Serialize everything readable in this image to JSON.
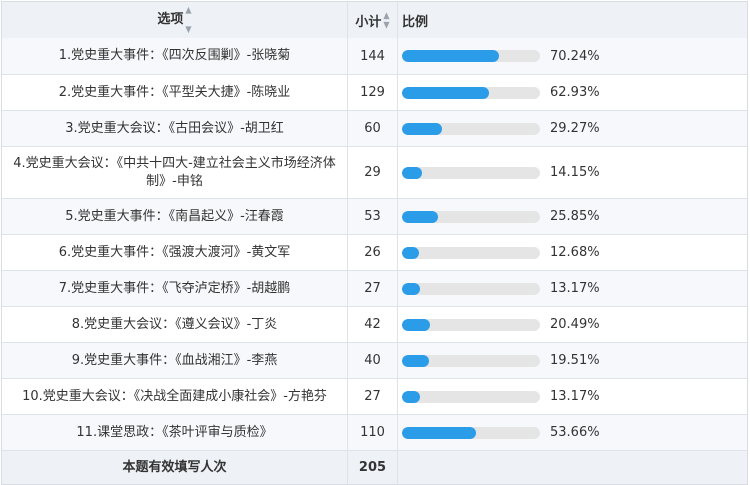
{
  "header": {
    "option": "选项",
    "count": "小计",
    "ratio": "比例",
    "sort_icon": "sort-arrows-icon"
  },
  "rows": [
    {
      "label": "1.党史重大事件：《四次反围剿》-张晓菊",
      "count": "144",
      "percent": "70.24%",
      "value": 0.7024
    },
    {
      "label": "2.党史重大事件：《平型关大捷》-陈晓业",
      "count": "129",
      "percent": "62.93%",
      "value": 0.6293
    },
    {
      "label": "3.党史重大会议：《古田会议》-胡卫红",
      "count": "60",
      "percent": "29.27%",
      "value": 0.2927
    },
    {
      "label": "4.党史重大会议：《中共十四大-建立社会主义市场经济体制》-申铭",
      "count": "29",
      "percent": "14.15%",
      "value": 0.1415
    },
    {
      "label": "5.党史重大事件：《南昌起义》-汪春霞",
      "count": "53",
      "percent": "25.85%",
      "value": 0.2585
    },
    {
      "label": "6.党史重大事件：《强渡大渡河》-黄文军",
      "count": "26",
      "percent": "12.68%",
      "value": 0.1268
    },
    {
      "label": "7.党史重大事件：《飞夺泸定桥》-胡越鹏",
      "count": "27",
      "percent": "13.17%",
      "value": 0.1317
    },
    {
      "label": "8.党史重大会议：《遵义会议》-丁炎",
      "count": "42",
      "percent": "20.49%",
      "value": 0.2049
    },
    {
      "label": "9.党史重大事件：《血战湘江》-李燕",
      "count": "40",
      "percent": "19.51%",
      "value": 0.1951
    },
    {
      "label": "10.党史重大会议：《决战全面建成小康社会》-方艳芬",
      "count": "27",
      "percent": "13.17%",
      "value": 0.1317
    },
    {
      "label": "11.课堂思政：《茶叶评审与质检》",
      "count": "110",
      "percent": "53.66%",
      "value": 0.5366
    }
  ],
  "footer": {
    "label": "本题有效填写人次",
    "count": "205"
  },
  "colors": {
    "bar_fill": "#2b9ce8",
    "bar_track": "#e5e5e5",
    "header_bg": "#eef2f6"
  }
}
